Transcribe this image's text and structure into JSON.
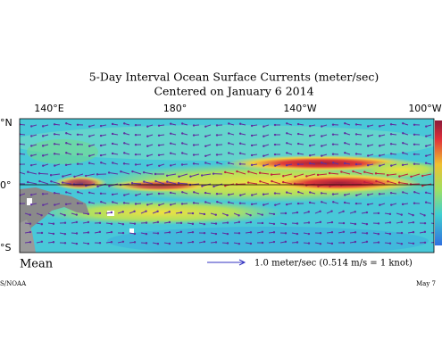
{
  "header": {
    "title": "5-Day Interval Ocean Surface Currents (meter/sec)",
    "subtitle": "Centered on January 6 2014"
  },
  "map": {
    "longitude_labels": [
      "140°E",
      "180°",
      "140°W",
      "100°W"
    ],
    "latitude_labels": [
      "°N",
      "0°",
      "°S"
    ]
  },
  "footer": {
    "mean_label": "Mean",
    "scale_label": "1.0 meter/sec  (0.514 m/s = 1 knot)",
    "source": "S/NOAA",
    "date": "May 7"
  }
}
